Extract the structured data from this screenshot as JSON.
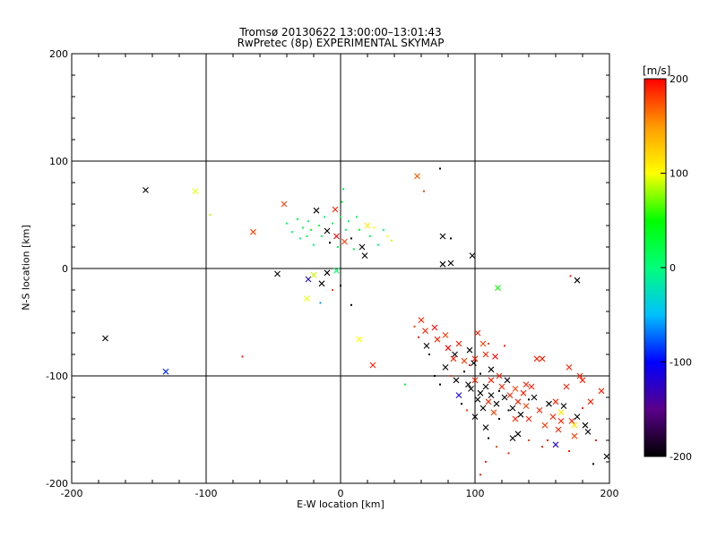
{
  "title_line1": "Tromsø 20130622 13:00:00–13:01:43",
  "title_line2": "RwPretec (8p) EXPERIMENTAL SKYMAP",
  "chart_data": {
    "type": "scatter",
    "title": "Tromsø 20130622 13:00:00–13:01:43",
    "subtitle": "RwPretec (8p) EXPERIMENTAL SKYMAP",
    "xlabel": "E-W location [km]",
    "ylabel": "N-S location [km]",
    "xlim": [
      -200,
      200
    ],
    "ylim": [
      -200,
      200
    ],
    "xticks": [
      "-200",
      "-100",
      "0",
      "100",
      "200"
    ],
    "yticks": [
      "-200",
      "-100",
      "0",
      "100",
      "200"
    ],
    "grid": true,
    "colorbar": {
      "label": "[m/s]",
      "range": [
        -200,
        200
      ],
      "ticks": [
        "200",
        "100",
        "0",
        "-100",
        "-200"
      ],
      "colormap": [
        "#000000",
        "#5a008a",
        "#0000ff",
        "#00c0ff",
        "#00ff7a",
        "#00ff00",
        "#ffff00",
        "#ff9a00",
        "#ff0000"
      ]
    },
    "points": [
      {
        "x": -145,
        "y": 73,
        "v": -200,
        "m": "x"
      },
      {
        "x": -108,
        "y": 72,
        "v": 95,
        "m": "x"
      },
      {
        "x": -175,
        "y": -65,
        "v": -200,
        "m": "x"
      },
      {
        "x": -130,
        "y": -96,
        "v": -90,
        "m": "x"
      },
      {
        "x": -73,
        "y": -82,
        "v": 190,
        "m": "."
      },
      {
        "x": -97,
        "y": 50,
        "v": 90,
        "m": "."
      },
      {
        "x": -65,
        "y": 34,
        "v": 180,
        "m": "x"
      },
      {
        "x": -42,
        "y": 60,
        "v": 180,
        "m": "x"
      },
      {
        "x": -47,
        "y": -5,
        "v": -200,
        "m": "x"
      },
      {
        "x": -40,
        "y": 42,
        "v": 10,
        "m": "."
      },
      {
        "x": -36,
        "y": 34,
        "v": 5,
        "m": "."
      },
      {
        "x": -32,
        "y": 46,
        "v": 20,
        "m": "."
      },
      {
        "x": -30,
        "y": 28,
        "v": 0,
        "m": "."
      },
      {
        "x": -28,
        "y": 38,
        "v": 15,
        "m": "."
      },
      {
        "x": -25,
        "y": 30,
        "v": 25,
        "m": "."
      },
      {
        "x": -24,
        "y": 44,
        "v": 10,
        "m": "."
      },
      {
        "x": -22,
        "y": 36,
        "v": 30,
        "m": "."
      },
      {
        "x": -20,
        "y": 22,
        "v": 5,
        "m": "."
      },
      {
        "x": -18,
        "y": 54,
        "v": -200,
        "m": "x"
      },
      {
        "x": -16,
        "y": 40,
        "v": 20,
        "m": "."
      },
      {
        "x": -14,
        "y": 30,
        "v": 10,
        "m": "."
      },
      {
        "x": -12,
        "y": 48,
        "v": 0,
        "m": "."
      },
      {
        "x": -10,
        "y": 35,
        "v": -200,
        "m": "x"
      },
      {
        "x": -8,
        "y": 24,
        "v": -200,
        "m": "."
      },
      {
        "x": -6,
        "y": 42,
        "v": 15,
        "m": "."
      },
      {
        "x": -4,
        "y": 55,
        "v": 190,
        "m": "x"
      },
      {
        "x": -3,
        "y": 30,
        "v": 200,
        "m": "x"
      },
      {
        "x": -2,
        "y": 20,
        "v": 10,
        "m": "."
      },
      {
        "x": 0,
        "y": 48,
        "v": 20,
        "m": "."
      },
      {
        "x": 1,
        "y": 62,
        "v": 25,
        "m": "."
      },
      {
        "x": 2,
        "y": 74,
        "v": 20,
        "m": "."
      },
      {
        "x": 3,
        "y": 25,
        "v": 180,
        "m": "x"
      },
      {
        "x": 4,
        "y": 36,
        "v": 10,
        "m": "."
      },
      {
        "x": 6,
        "y": 44,
        "v": 5,
        "m": "."
      },
      {
        "x": 8,
        "y": 28,
        "v": -200,
        "m": "."
      },
      {
        "x": 10,
        "y": 18,
        "v": 20,
        "m": "."
      },
      {
        "x": 12,
        "y": 48,
        "v": 15,
        "m": "."
      },
      {
        "x": 14,
        "y": 36,
        "v": 30,
        "m": "."
      },
      {
        "x": 16,
        "y": 20,
        "v": -200,
        "m": "x"
      },
      {
        "x": 18,
        "y": 12,
        "v": -200,
        "m": "x"
      },
      {
        "x": 20,
        "y": 40,
        "v": 110,
        "m": "x"
      },
      {
        "x": 22,
        "y": 30,
        "v": 20,
        "m": "."
      },
      {
        "x": 25,
        "y": 38,
        "v": 100,
        "m": "."
      },
      {
        "x": 28,
        "y": 22,
        "v": 10,
        "m": "."
      },
      {
        "x": 32,
        "y": 36,
        "v": 0,
        "m": "."
      },
      {
        "x": 35,
        "y": 30,
        "v": 100,
        "m": "."
      },
      {
        "x": 38,
        "y": 26,
        "v": 90,
        "m": "."
      },
      {
        "x": -24,
        "y": -10,
        "v": -120,
        "m": "x"
      },
      {
        "x": -20,
        "y": -6,
        "v": 90,
        "m": "x"
      },
      {
        "x": -14,
        "y": -14,
        "v": -200,
        "m": "x"
      },
      {
        "x": -10,
        "y": -4,
        "v": -200,
        "m": "x"
      },
      {
        "x": -6,
        "y": -20,
        "v": 180,
        "m": "."
      },
      {
        "x": -3,
        "y": -2,
        "v": 10,
        "m": "x"
      },
      {
        "x": 0,
        "y": -16,
        "v": -200,
        "m": "."
      },
      {
        "x": -25,
        "y": -28,
        "v": 95,
        "m": "x"
      },
      {
        "x": -15,
        "y": -32,
        "v": -60,
        "m": "."
      },
      {
        "x": 8,
        "y": -34,
        "v": -200,
        "m": "."
      },
      {
        "x": 14,
        "y": -66,
        "v": 100,
        "m": "x"
      },
      {
        "x": 24,
        "y": -90,
        "v": 190,
        "m": "x"
      },
      {
        "x": 48,
        "y": -108,
        "v": 30,
        "m": "."
      },
      {
        "x": 57,
        "y": 86,
        "v": 170,
        "m": "x"
      },
      {
        "x": 74,
        "y": 93,
        "v": -200,
        "m": "."
      },
      {
        "x": 62,
        "y": 72,
        "v": 180,
        "m": "."
      },
      {
        "x": 76,
        "y": 30,
        "v": -200,
        "m": "x"
      },
      {
        "x": 82,
        "y": 28,
        "v": -200,
        "m": "."
      },
      {
        "x": 76,
        "y": 4,
        "v": -200,
        "m": "x"
      },
      {
        "x": 82,
        "y": 5,
        "v": -200,
        "m": "x"
      },
      {
        "x": 98,
        "y": 12,
        "v": -200,
        "m": "x"
      },
      {
        "x": 117,
        "y": -18,
        "v": 50,
        "m": "x"
      },
      {
        "x": 171,
        "y": -7,
        "v": 190,
        "m": "."
      },
      {
        "x": 176,
        "y": -11,
        "v": -200,
        "m": "x"
      },
      {
        "x": 60,
        "y": -48,
        "v": 190,
        "m": "x"
      },
      {
        "x": 55,
        "y": -54,
        "v": 180,
        "m": "."
      },
      {
        "x": 63,
        "y": -58,
        "v": 190,
        "m": "x"
      },
      {
        "x": 70,
        "y": -55,
        "v": 200,
        "m": "x"
      },
      {
        "x": 72,
        "y": -66,
        "v": 190,
        "m": "x"
      },
      {
        "x": 78,
        "y": -62,
        "v": 180,
        "m": "x"
      },
      {
        "x": 80,
        "y": -74,
        "v": 200,
        "m": "x"
      },
      {
        "x": 64,
        "y": -72,
        "v": -200,
        "m": "x"
      },
      {
        "x": 85,
        "y": -80,
        "v": -200,
        "m": "x"
      },
      {
        "x": 88,
        "y": -70,
        "v": 190,
        "m": "x"
      },
      {
        "x": 92,
        "y": -86,
        "v": 180,
        "m": "x"
      },
      {
        "x": 96,
        "y": -76,
        "v": -200,
        "m": "x"
      },
      {
        "x": 99,
        "y": -88,
        "v": -200,
        "m": "x"
      },
      {
        "x": 102,
        "y": -60,
        "v": 190,
        "m": "x"
      },
      {
        "x": 106,
        "y": -70,
        "v": 180,
        "m": "x"
      },
      {
        "x": 108,
        "y": -80,
        "v": 190,
        "m": "x"
      },
      {
        "x": 112,
        "y": -94,
        "v": -200,
        "m": "x"
      },
      {
        "x": 115,
        "y": -82,
        "v": 200,
        "m": "x"
      },
      {
        "x": 118,
        "y": -100,
        "v": 190,
        "m": "x"
      },
      {
        "x": 92,
        "y": -96,
        "v": -200,
        "m": "."
      },
      {
        "x": 95,
        "y": -108,
        "v": -200,
        "m": "x"
      },
      {
        "x": 97,
        "y": -112,
        "v": -200,
        "m": "x"
      },
      {
        "x": 100,
        "y": -104,
        "v": 190,
        "m": "x"
      },
      {
        "x": 102,
        "y": -122,
        "v": -200,
        "m": "x"
      },
      {
        "x": 104,
        "y": -116,
        "v": -200,
        "m": "x"
      },
      {
        "x": 106,
        "y": -130,
        "v": -200,
        "m": "x"
      },
      {
        "x": 108,
        "y": -110,
        "v": -200,
        "m": "x"
      },
      {
        "x": 110,
        "y": -124,
        "v": 190,
        "m": "x"
      },
      {
        "x": 112,
        "y": -118,
        "v": -200,
        "m": "x"
      },
      {
        "x": 114,
        "y": -134,
        "v": 180,
        "m": "x"
      },
      {
        "x": 116,
        "y": -126,
        "v": -200,
        "m": "x"
      },
      {
        "x": 118,
        "y": -140,
        "v": -200,
        "m": "."
      },
      {
        "x": 120,
        "y": -110,
        "v": 190,
        "m": "x"
      },
      {
        "x": 122,
        "y": -120,
        "v": -200,
        "m": "x"
      },
      {
        "x": 124,
        "y": -104,
        "v": -200,
        "m": "x"
      },
      {
        "x": 126,
        "y": -118,
        "v": 190,
        "m": "x"
      },
      {
        "x": 128,
        "y": -130,
        "v": -200,
        "m": "x"
      },
      {
        "x": 130,
        "y": -112,
        "v": 180,
        "m": "x"
      },
      {
        "x": 132,
        "y": -124,
        "v": 190,
        "m": "x"
      },
      {
        "x": 134,
        "y": -136,
        "v": -200,
        "m": "x"
      },
      {
        "x": 136,
        "y": -116,
        "v": 190,
        "m": "x"
      },
      {
        "x": 138,
        "y": -128,
        "v": 180,
        "m": "x"
      },
      {
        "x": 140,
        "y": -140,
        "v": 190,
        "m": "x"
      },
      {
        "x": 142,
        "y": -110,
        "v": 190,
        "m": "x"
      },
      {
        "x": 144,
        "y": -120,
        "v": -200,
        "m": "x"
      },
      {
        "x": 146,
        "y": -84,
        "v": 190,
        "m": "x"
      },
      {
        "x": 150,
        "y": -84,
        "v": 190,
        "m": "x"
      },
      {
        "x": 148,
        "y": -132,
        "v": 190,
        "m": "x"
      },
      {
        "x": 152,
        "y": -146,
        "v": 180,
        "m": "x"
      },
      {
        "x": 155,
        "y": -126,
        "v": -200,
        "m": "x"
      },
      {
        "x": 158,
        "y": -138,
        "v": 190,
        "m": "x"
      },
      {
        "x": 160,
        "y": -124,
        "v": 190,
        "m": "x"
      },
      {
        "x": 162,
        "y": -150,
        "v": 190,
        "m": "x"
      },
      {
        "x": 164,
        "y": -134,
        "v": 110,
        "m": "x"
      },
      {
        "x": 166,
        "y": -128,
        "v": -200,
        "m": "x"
      },
      {
        "x": 168,
        "y": -110,
        "v": 190,
        "m": "x"
      },
      {
        "x": 170,
        "y": -92,
        "v": 190,
        "m": "x"
      },
      {
        "x": 172,
        "y": -142,
        "v": 190,
        "m": "x"
      },
      {
        "x": 174,
        "y": -156,
        "v": 180,
        "m": "x"
      },
      {
        "x": 176,
        "y": -138,
        "v": -200,
        "m": "x"
      },
      {
        "x": 178,
        "y": -100,
        "v": 190,
        "m": "x"
      },
      {
        "x": 180,
        "y": -104,
        "v": 190,
        "m": "x"
      },
      {
        "x": 182,
        "y": -146,
        "v": -200,
        "m": "x"
      },
      {
        "x": 184,
        "y": -152,
        "v": -200,
        "m": "x"
      },
      {
        "x": 186,
        "y": -124,
        "v": 190,
        "m": "x"
      },
      {
        "x": 188,
        "y": -182,
        "v": -200,
        "m": "."
      },
      {
        "x": 194,
        "y": -114,
        "v": 190,
        "m": "x"
      },
      {
        "x": 198,
        "y": -175,
        "v": -200,
        "m": "x"
      },
      {
        "x": 88,
        "y": -118,
        "v": -110,
        "m": "x"
      },
      {
        "x": 90,
        "y": -126,
        "v": -200,
        "m": "."
      },
      {
        "x": 94,
        "y": -132,
        "v": 180,
        "m": "."
      },
      {
        "x": 100,
        "y": -138,
        "v": -200,
        "m": "x"
      },
      {
        "x": 108,
        "y": -148,
        "v": -200,
        "m": "x"
      },
      {
        "x": 110,
        "y": -158,
        "v": -200,
        "m": "."
      },
      {
        "x": 116,
        "y": -166,
        "v": 180,
        "m": "."
      },
      {
        "x": 108,
        "y": -180,
        "v": 190,
        "m": "."
      },
      {
        "x": 104,
        "y": -192,
        "v": 190,
        "m": "."
      },
      {
        "x": 125,
        "y": -172,
        "v": 190,
        "m": "."
      },
      {
        "x": 128,
        "y": -158,
        "v": -200,
        "m": "x"
      },
      {
        "x": 132,
        "y": -154,
        "v": -200,
        "m": "x"
      },
      {
        "x": 140,
        "y": -160,
        "v": 180,
        "m": "."
      },
      {
        "x": 150,
        "y": -166,
        "v": 190,
        "m": "."
      },
      {
        "x": 154,
        "y": -160,
        "v": 190,
        "m": "."
      },
      {
        "x": 160,
        "y": -164,
        "v": -120,
        "m": "x"
      },
      {
        "x": 164,
        "y": -142,
        "v": 190,
        "m": "x"
      },
      {
        "x": 70,
        "y": -100,
        "v": -200,
        "m": "."
      },
      {
        "x": 74,
        "y": -108,
        "v": -200,
        "m": "."
      },
      {
        "x": 78,
        "y": -92,
        "v": -200,
        "m": "x"
      },
      {
        "x": 82,
        "y": -100,
        "v": 180,
        "m": "."
      },
      {
        "x": 86,
        "y": -104,
        "v": -200,
        "m": "x"
      },
      {
        "x": 66,
        "y": -80,
        "v": -200,
        "m": "."
      },
      {
        "x": 58,
        "y": -64,
        "v": 190,
        "m": "."
      },
      {
        "x": 110,
        "y": -70,
        "v": 180,
        "m": "."
      },
      {
        "x": 122,
        "y": -72,
        "v": 190,
        "m": "."
      },
      {
        "x": 138,
        "y": -108,
        "v": 190,
        "m": "x"
      },
      {
        "x": 140,
        "y": -122,
        "v": -200,
        "m": "."
      },
      {
        "x": 130,
        "y": -140,
        "v": 190,
        "m": "x"
      },
      {
        "x": 125,
        "y": -132,
        "v": -200,
        "m": "."
      },
      {
        "x": 118,
        "y": -114,
        "v": -200,
        "m": "."
      },
      {
        "x": 112,
        "y": -104,
        "v": 190,
        "m": "x"
      },
      {
        "x": 104,
        "y": -98,
        "v": -200,
        "m": "."
      },
      {
        "x": 96,
        "y": -90,
        "v": 190,
        "m": "."
      },
      {
        "x": 84,
        "y": -84,
        "v": 190,
        "m": "x"
      },
      {
        "x": 100,
        "y": -84,
        "v": 190,
        "m": "x"
      },
      {
        "x": 174,
        "y": -146,
        "v": 110,
        "m": "x"
      },
      {
        "x": 180,
        "y": -130,
        "v": 190,
        "m": "."
      },
      {
        "x": 190,
        "y": -160,
        "v": 190,
        "m": "."
      },
      {
        "x": 170,
        "y": -170,
        "v": 190,
        "m": "."
      }
    ]
  }
}
